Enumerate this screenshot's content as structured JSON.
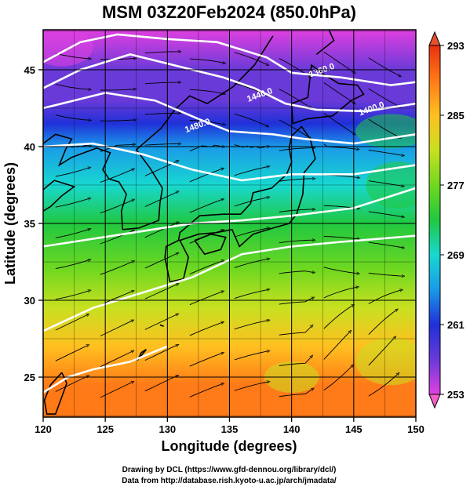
{
  "chart_data": {
    "type": "heatmap",
    "title": "MSM 03Z20Feb2024 (850.0hPa)",
    "xlabel": "Longitude (degrees)",
    "ylabel": "Latitude  (degrees)",
    "xlim": [
      120,
      150
    ],
    "ylim": [
      22.4,
      47.6
    ],
    "x_ticks": [
      "120",
      "125",
      "130",
      "135",
      "140",
      "145",
      "150"
    ],
    "y_ticks": [
      "25",
      "30",
      "35",
      "40",
      "45"
    ],
    "x_tick_values": [
      120,
      125,
      130,
      135,
      140,
      145,
      150
    ],
    "y_tick_values": [
      25,
      30,
      35,
      40,
      45
    ],
    "grid": true,
    "colorbar": {
      "min": 253,
      "max": 293,
      "tick_labels": [
        "293",
        "285",
        "277",
        "269",
        "261",
        "253"
      ],
      "tick_values": [
        293,
        285,
        277,
        269,
        261,
        253
      ],
      "extend": "both",
      "colors": [
        "#e040e0",
        "#6a3ad8",
        "#2030d8",
        "#1a9ae8",
        "#18d8d0",
        "#20c840",
        "#70d820",
        "#c8e020",
        "#ffc020",
        "#ff7a18",
        "#e83010"
      ]
    },
    "temperature_field": {
      "description_units": "K",
      "latitude_profile": [
        {
          "lat": 47.6,
          "value": 254
        },
        {
          "lat": 45,
          "value": 255
        },
        {
          "lat": 43,
          "value": 257
        },
        {
          "lat": 41.5,
          "value": 262
        },
        {
          "lat": 40,
          "value": 266
        },
        {
          "lat": 37.5,
          "value": 270
        },
        {
          "lat": 35,
          "value": 273
        },
        {
          "lat": 32,
          "value": 277
        },
        {
          "lat": 29.5,
          "value": 281
        },
        {
          "lat": 27,
          "value": 284
        },
        {
          "lat": 24.5,
          "value": 287
        },
        {
          "lat": 22.4,
          "value": 289
        }
      ]
    },
    "contours": [
      {
        "label": "1360.0",
        "label_lon": 142.5,
        "label_lat": 44.8
      },
      {
        "label": "1400.0",
        "label_lon": 146.5,
        "label_lat": 42.3
      },
      {
        "label": "1440.0",
        "label_lon": 137.5,
        "label_lat": 43.2
      },
      {
        "label": "1480.0",
        "label_lon": 132.5,
        "label_lat": 41.2
      }
    ],
    "coastline": "Japan and East Asia",
    "streamlines": true
  },
  "credits": {
    "line1": "Drawing by DCL (https://www.gfd-dennou.org/library/dcl/)",
    "line2": "Data from http://database.rish.kyoto-u.ac.jp/arch/jmadata/"
  }
}
